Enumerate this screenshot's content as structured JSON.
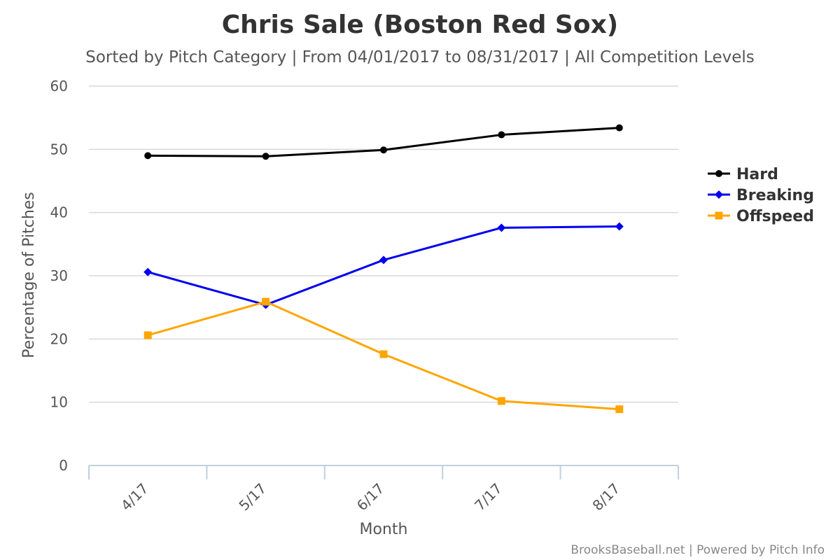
{
  "chart_data": {
    "type": "line",
    "title": "Chris Sale (Boston Red Sox)",
    "subtitle": "Sorted by Pitch Category | From 04/01/2017 to 08/31/2017 | All Competition Levels",
    "xlabel": "Month",
    "ylabel": "Percentage of Pitches",
    "categories": [
      "4/17",
      "5/17",
      "6/17",
      "7/17",
      "8/17"
    ],
    "ylim": [
      0,
      60
    ],
    "yticks": [
      0,
      10,
      20,
      30,
      40,
      50,
      60
    ],
    "grid": true,
    "legend_position": "right",
    "series": [
      {
        "name": "Hard",
        "values": [
          49.0,
          48.9,
          49.9,
          52.3,
          53.4
        ],
        "color": "#000000",
        "marker": "circle"
      },
      {
        "name": "Breaking",
        "values": [
          30.6,
          25.4,
          32.5,
          37.6,
          37.8
        ],
        "color": "#0000ee",
        "marker": "diamond"
      },
      {
        "name": "Offspeed",
        "values": [
          20.6,
          25.9,
          17.6,
          10.2,
          8.9
        ],
        "color": "#ffa500",
        "marker": "square"
      }
    ],
    "credit": "BrooksBaseball.net | Powered by Pitch Info"
  }
}
